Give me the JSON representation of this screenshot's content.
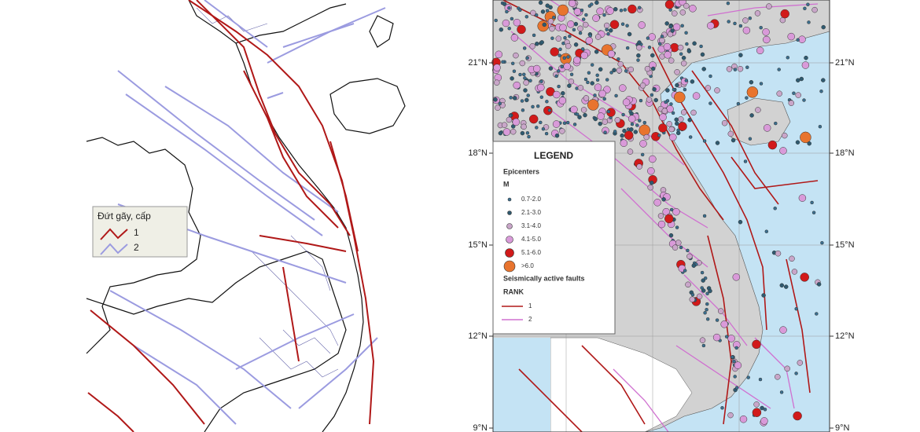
{
  "left_map": {
    "legend": {
      "title": "Đứt gãy, cấp",
      "items": [
        "1",
        "2"
      ]
    }
  },
  "right_map": {
    "lat_labels": [
      "21°N",
      "18°N",
      "15°N",
      "12°N",
      "9°N"
    ],
    "legend": {
      "title": "LEGEND",
      "epicenters_title": "Epicenters",
      "magnitude_label": "M",
      "magnitudes": [
        "0.7-2.0",
        "2.1-3.0",
        "3.1-4.0",
        "4.1-5.0",
        "5.1-6.0",
        ">6.0"
      ],
      "faults_title": "Seismically active faults",
      "rank_label": "RANK",
      "ranks": [
        "1",
        "2"
      ]
    }
  }
}
